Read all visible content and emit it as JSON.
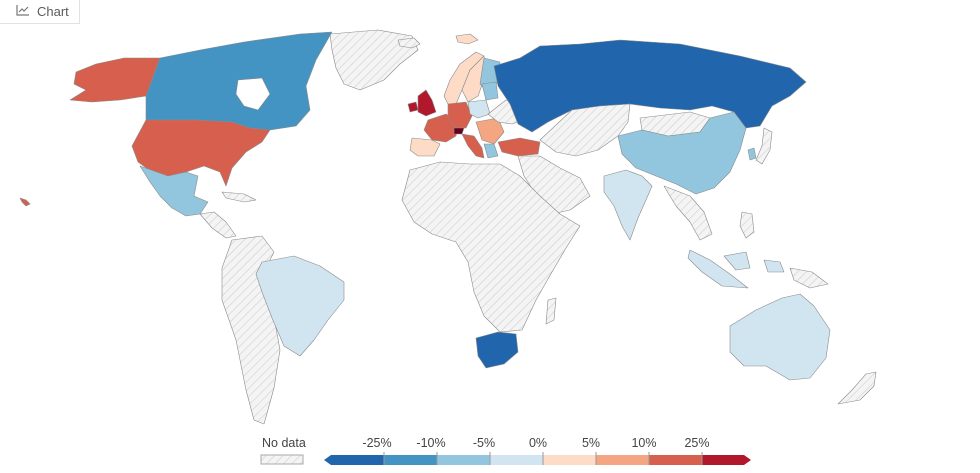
{
  "tab": {
    "label": "Chart",
    "icon": "line-chart-icon"
  },
  "legend": {
    "no_data_label": "No data",
    "labels": [
      "-25%",
      "-10%",
      "-5%",
      "0%",
      "5%",
      "10%",
      "25%"
    ],
    "colors": [
      "#2166ac",
      "#4393c3",
      "#92c5de",
      "#d1e5f0",
      "#fddbc7",
      "#f4a582",
      "#d6604d",
      "#b2182b"
    ]
  },
  "colors": {
    "no_data": "#f2f2f2",
    "no_data_hatch": "#cccccc",
    "border": "#8a8a8a"
  }
}
